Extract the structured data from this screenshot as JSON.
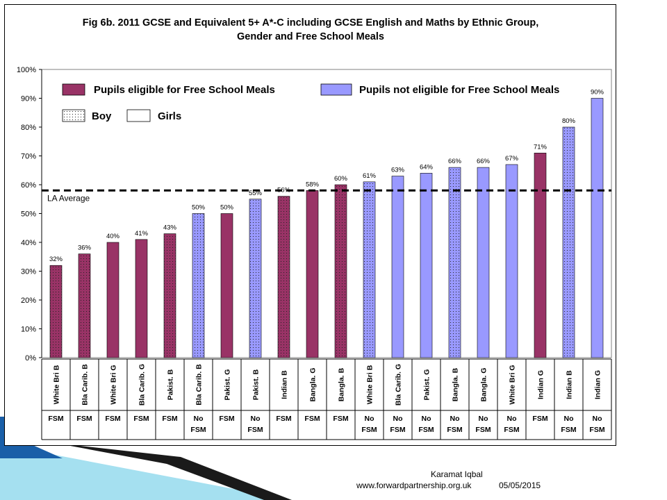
{
  "title": {
    "line1": "Fig 6b. 2011 GCSE and Equivalent 5+ A*-C including GCSE English and Maths by Ethnic Group,",
    "line2": "Gender and Free School Meals"
  },
  "footer": {
    "author": "Karamat Iqbal",
    "site": "www.forwardpartnership.org.uk",
    "date": "05/05/2015"
  },
  "colors": {
    "fsm": "#993366",
    "no_fsm": "#9999ff",
    "avg_line": "#000000",
    "decor_dark": "#1a1a1a",
    "decor_light": "#7fd3ea"
  },
  "chart_data": {
    "type": "bar",
    "title": "Fig 6b. 2011 GCSE and Equivalent 5+ A*-C including GCSE English and Maths by Ethnic Group, Gender and Free School Meals",
    "ylim": [
      0,
      100
    ],
    "yticks": [
      "0%",
      "10%",
      "20%",
      "30%",
      "40%",
      "50%",
      "60%",
      "70%",
      "80%",
      "90%",
      "100%"
    ],
    "grid": false,
    "legend": [
      {
        "label": "Pupils eligible for Free School Meals",
        "key": "fsm"
      },
      {
        "label": "Pupils not eligible for Free School Meals",
        "key": "no_fsm"
      },
      {
        "label": "Boy",
        "key": "boy"
      },
      {
        "label": "Girls",
        "key": "girl"
      }
    ],
    "reference_line": {
      "label": "LA Average",
      "value": 58
    },
    "bars": [
      {
        "category": "White Bri B",
        "fsm_label": "FSM",
        "value": 32,
        "label": "32%",
        "group": "fsm",
        "gender": "boy"
      },
      {
        "category": "Bla Carib. B",
        "fsm_label": "FSM",
        "value": 36,
        "label": "36%",
        "group": "fsm",
        "gender": "boy"
      },
      {
        "category": "White Bri G",
        "fsm_label": "FSM",
        "value": 40,
        "label": "40%",
        "group": "fsm",
        "gender": "girl"
      },
      {
        "category": "Bla Carib. G",
        "fsm_label": "FSM",
        "value": 41,
        "label": "41%",
        "group": "fsm",
        "gender": "girl"
      },
      {
        "category": "Pakist. B",
        "fsm_label": "FSM",
        "value": 43,
        "label": "43%",
        "group": "fsm",
        "gender": "boy"
      },
      {
        "category": "Bla Carib. B",
        "fsm_label": "No FSM",
        "value": 50,
        "label": "50%",
        "group": "no_fsm",
        "gender": "boy"
      },
      {
        "category": "Pakist. G",
        "fsm_label": "FSM",
        "value": 50,
        "label": "50%",
        "group": "fsm",
        "gender": "girl"
      },
      {
        "category": "Pakist. B",
        "fsm_label": "No FSM",
        "value": 55,
        "label": "55%",
        "group": "no_fsm",
        "gender": "boy"
      },
      {
        "category": "Indian B",
        "fsm_label": "FSM",
        "value": 56,
        "label": "56%",
        "group": "fsm",
        "gender": "boy"
      },
      {
        "category": "Bangla. G",
        "fsm_label": "FSM",
        "value": 58,
        "label": "58%",
        "group": "fsm",
        "gender": "girl"
      },
      {
        "category": "Bangla. B",
        "fsm_label": "FSM",
        "value": 60,
        "label": "60%",
        "group": "fsm",
        "gender": "boy"
      },
      {
        "category": "White Bri B",
        "fsm_label": "No FSM",
        "value": 61,
        "label": "61%",
        "group": "no_fsm",
        "gender": "boy"
      },
      {
        "category": "Bla Carib. G",
        "fsm_label": "No FSM",
        "value": 63,
        "label": "63%",
        "group": "no_fsm",
        "gender": "girl"
      },
      {
        "category": "Pakist. G",
        "fsm_label": "No FSM",
        "value": 64,
        "label": "64%",
        "group": "no_fsm",
        "gender": "girl"
      },
      {
        "category": "Bangla. B",
        "fsm_label": "No FSM",
        "value": 66,
        "label": "66%",
        "group": "no_fsm",
        "gender": "boy"
      },
      {
        "category": "Bangla. G",
        "fsm_label": "No FSM",
        "value": 66,
        "label": "66%",
        "group": "no_fsm",
        "gender": "girl"
      },
      {
        "category": "White Bri G",
        "fsm_label": "No FSM",
        "value": 67,
        "label": "67%",
        "group": "no_fsm",
        "gender": "girl"
      },
      {
        "category": "Indian G",
        "fsm_label": "FSM",
        "value": 71,
        "label": "71%",
        "group": "fsm",
        "gender": "girl"
      },
      {
        "category": "Indian B",
        "fsm_label": "No FSM",
        "value": 80,
        "label": "80%",
        "group": "no_fsm",
        "gender": "boy"
      },
      {
        "category": "Indian G",
        "fsm_label": "No FSM",
        "value": 90,
        "label": "90%",
        "group": "no_fsm",
        "gender": "girl"
      }
    ]
  }
}
